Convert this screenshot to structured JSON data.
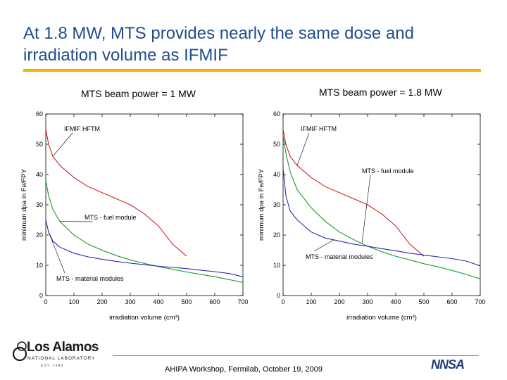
{
  "title": "At 1.8 MW, MTS provides nearly the same dose and irradiation volume as IFMIF",
  "footer": "AHIPA Workshop, Fermilab, October 19, 2009",
  "logo": {
    "name": "Los Alamos",
    "subtitle": "NATIONAL LABORATORY",
    "est": "EST. 1943",
    "agency": "NNSA"
  },
  "colors": {
    "title": "#1f4e8c",
    "rule": "#f0b400",
    "ifmif": "#d42020",
    "fuel": "#1a9a2a",
    "material": "#2a2ab0"
  },
  "chart_data": [
    {
      "type": "line",
      "title": "MTS beam power = 1 MW",
      "xlabel": "irradiation volume (cm³)",
      "ylabel": "minimum dpa in Fe/FPY",
      "xlim": [
        0,
        700
      ],
      "ylim": [
        0,
        60
      ],
      "xticks": [
        0,
        100,
        200,
        300,
        400,
        500,
        600,
        700
      ],
      "yticks": [
        0,
        10,
        20,
        30,
        40,
        50,
        60
      ],
      "series": [
        {
          "name": "IFMIF HFTM",
          "color": "#d42020",
          "x": [
            0,
            10,
            25,
            50,
            100,
            150,
            200,
            250,
            300,
            350,
            400,
            450,
            500
          ],
          "y": [
            55,
            50,
            46,
            43,
            39,
            36,
            34,
            32,
            30,
            27,
            23,
            17,
            13
          ]
        },
        {
          "name": "MTS - fuel module",
          "color": "#1a9a2a",
          "x": [
            0,
            10,
            25,
            50,
            100,
            150,
            200,
            250,
            300,
            350,
            400,
            450,
            500,
            550,
            600,
            650,
            700
          ],
          "y": [
            38,
            33,
            28.5,
            24.5,
            20,
            17,
            15,
            13.2,
            11.8,
            10.6,
            9.6,
            8.7,
            7.8,
            7,
            6.2,
            5.3,
            4.3
          ]
        },
        {
          "name": "MTS - material modules",
          "color": "#2a2ab0",
          "x": [
            0,
            10,
            25,
            50,
            100,
            150,
            200,
            250,
            300,
            350,
            400,
            450,
            500,
            550,
            600,
            650,
            700
          ],
          "y": [
            25,
            21,
            18,
            16,
            14,
            12.8,
            12,
            11.3,
            10.7,
            10.2,
            9.7,
            9.3,
            8.9,
            8.4,
            7.9,
            7.3,
            6.2
          ]
        }
      ],
      "annotations": [
        {
          "text": "IFMIF HFTM",
          "series": "IFMIF HFTM",
          "at_x": 25
        },
        {
          "text": "MTS - fuel module",
          "series": "MTS - fuel module",
          "at_x": 50
        },
        {
          "text": "MTS - material modules",
          "series": "MTS - material modules",
          "at_x": 10
        }
      ]
    },
    {
      "type": "line",
      "title": "MTS beam power = 1.8 MW",
      "xlabel": "irradiation volume (cm³)",
      "ylabel": "minimum dpa in Fe/FPY",
      "xlim": [
        0,
        700
      ],
      "ylim": [
        0,
        60
      ],
      "xticks": [
        0,
        100,
        200,
        300,
        400,
        500,
        600,
        700
      ],
      "yticks": [
        0,
        10,
        20,
        30,
        40,
        50,
        60
      ],
      "series": [
        {
          "name": "IFMIF HFTM",
          "color": "#d42020",
          "x": [
            0,
            10,
            25,
            50,
            100,
            150,
            200,
            250,
            300,
            350,
            400,
            450,
            500
          ],
          "y": [
            55,
            50,
            46,
            43,
            39,
            36,
            34,
            32,
            30,
            27,
            23,
            17,
            13
          ]
        },
        {
          "name": "MTS - fuel module",
          "color": "#1a9a2a",
          "x": [
            0,
            10,
            25,
            50,
            100,
            150,
            200,
            250,
            300,
            350,
            400,
            450,
            500,
            550,
            600,
            650,
            700
          ],
          "y": [
            53,
            47,
            41,
            35,
            29,
            24.5,
            21,
            18.5,
            16.3,
            14.5,
            13,
            11.8,
            10.5,
            9.5,
            8.3,
            7,
            5.5
          ]
        },
        {
          "name": "MTS - material modules",
          "color": "#2a2ab0",
          "x": [
            0,
            10,
            25,
            50,
            100,
            150,
            200,
            250,
            300,
            350,
            400,
            450,
            500,
            550,
            600,
            650,
            700
          ],
          "y": [
            42,
            33,
            28,
            25,
            21,
            19,
            18,
            17,
            16.3,
            15.5,
            14.8,
            14,
            13.4,
            12.8,
            12.2,
            11.4,
            9.8
          ]
        }
      ],
      "annotations": [
        {
          "text": "IFMIF HFTM",
          "series": "IFMIF HFTM",
          "at_x": 50
        },
        {
          "text": "MTS - fuel module",
          "series": "MTS - fuel module",
          "at_x": 280
        },
        {
          "text": "MTS - material modules",
          "series": "MTS - material modules",
          "at_x": 180
        }
      ]
    }
  ]
}
